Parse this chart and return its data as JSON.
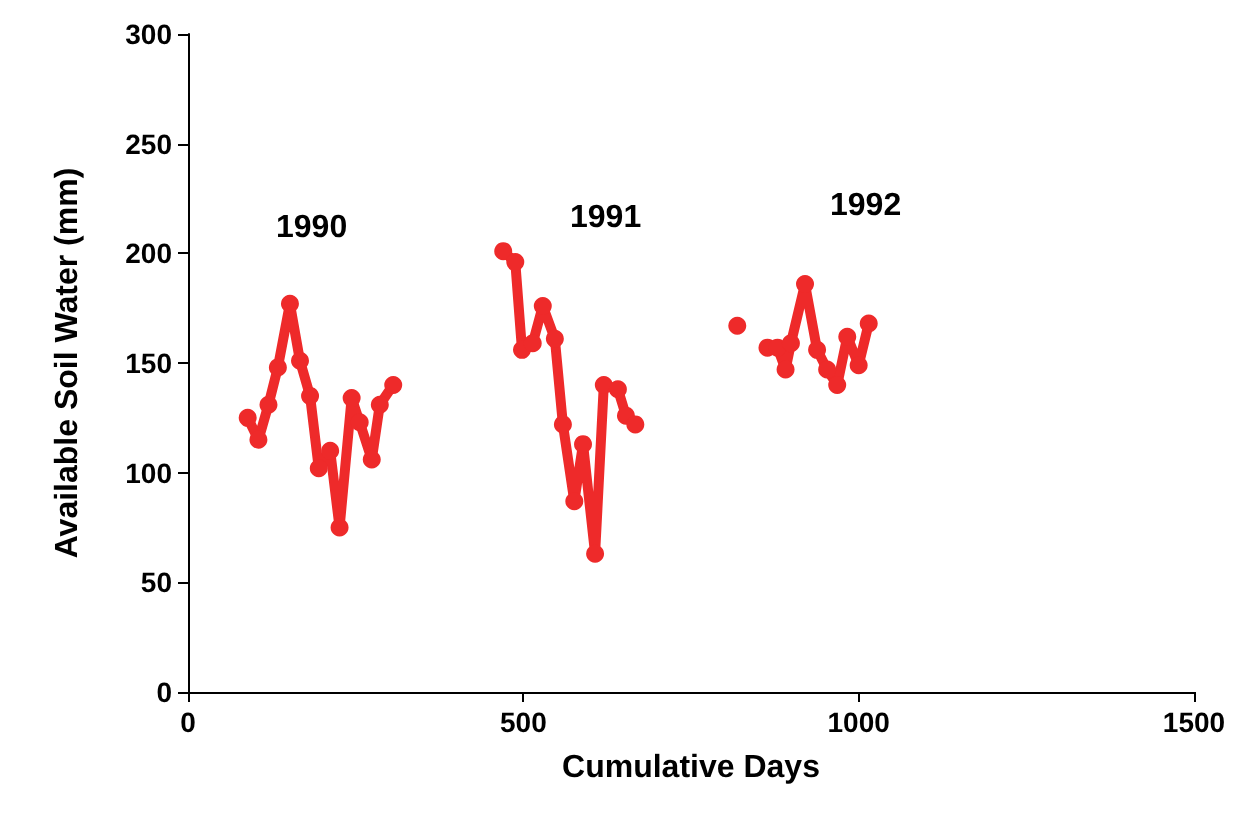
{
  "chart_data": {
    "type": "line",
    "xlabel": "Cumulative Days",
    "ylabel": "Available Soil Water (mm)",
    "x": [
      89,
      105,
      120,
      134,
      152,
      167,
      182,
      195,
      212,
      226,
      244,
      256,
      274,
      286,
      306,
      400,
      470,
      488,
      498,
      514,
      529,
      547,
      559,
      576,
      589,
      607,
      620,
      641,
      653,
      667,
      750,
      819,
      846,
      864,
      879,
      891,
      899,
      920,
      938,
      953,
      968,
      983,
      1000,
      1015
    ],
    "series": [
      {
        "color": "#ee2a2a",
        "values": [
          125,
          115,
          131,
          148,
          177,
          151,
          135,
          102,
          110,
          75,
          134,
          123,
          106,
          131,
          140,
          null,
          201,
          196,
          156,
          159,
          176,
          161,
          122,
          87,
          113,
          63,
          140,
          138,
          126,
          122,
          null,
          167,
          null,
          157,
          157,
          147,
          159,
          186,
          156,
          147,
          140,
          162,
          149,
          168
        ]
      }
    ],
    "xlim": [
      0,
      1500
    ],
    "xticks": [
      0,
      500,
      1000,
      1500
    ],
    "ylim": [
      0,
      300
    ],
    "yticks": [
      0,
      50,
      100,
      150,
      200,
      250,
      300
    ],
    "grid": false,
    "marker": "circle",
    "line_style": "solid",
    "annotations": [
      "1990",
      "1991",
      "1992"
    ]
  }
}
